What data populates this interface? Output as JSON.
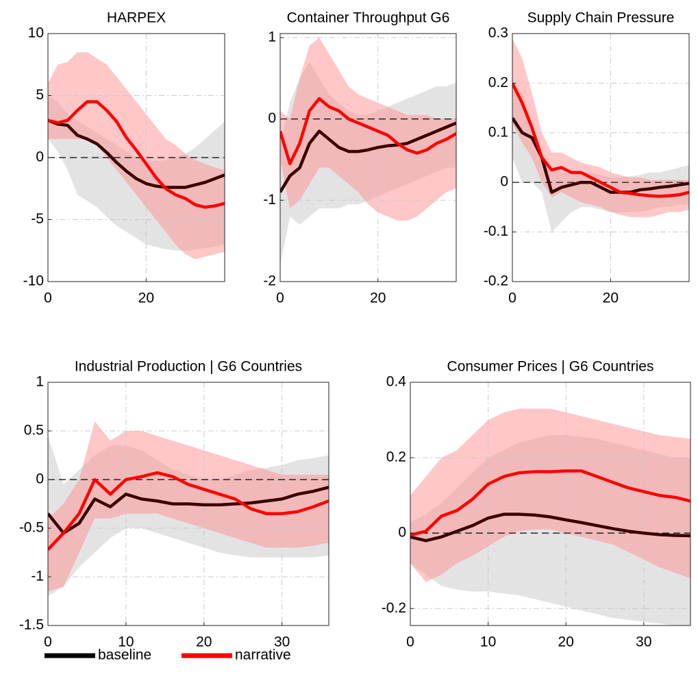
{
  "chart_data": [
    {
      "type": "line",
      "title": "HARPEX",
      "x": [
        0,
        2,
        4,
        6,
        8,
        10,
        12,
        14,
        16,
        18,
        20,
        22,
        24,
        26,
        28,
        30,
        32,
        34,
        36
      ],
      "xlim": [
        0,
        36
      ],
      "xticks": [
        0,
        20
      ],
      "ylim": [
        -10,
        10
      ],
      "yticks": [
        -10,
        -5,
        0,
        5,
        10
      ],
      "grid": true,
      "zero_line": true,
      "series": [
        {
          "name": "baseline",
          "color": "#3a0000",
          "band_color": "#e3e3e3",
          "values": [
            3,
            2.7,
            2.6,
            1.8,
            1.5,
            1.1,
            0.4,
            -0.4,
            -1.1,
            -1.7,
            -2.1,
            -2.3,
            -2.4,
            -2.4,
            -2.4,
            -2.2,
            -2.0,
            -1.7,
            -1.4
          ],
          "band_upper": [
            5,
            4.5,
            3.5,
            3,
            2.5,
            2,
            1.5,
            1,
            0.5,
            0,
            -0.2,
            -0.3,
            -0.2,
            0,
            0.3,
            0.8,
            1.5,
            2.2,
            2.9
          ],
          "band_lower": [
            1.5,
            0.5,
            -1,
            -3,
            -3.5,
            -4,
            -4.8,
            -5.5,
            -6,
            -6.5,
            -7,
            -7.2,
            -7.4,
            -7.5,
            -7.5,
            -7.4,
            -7.3,
            -7.2,
            -7.0
          ]
        },
        {
          "name": "narrative",
          "color": "#ff0000",
          "band_color": "#ff8f8f",
          "values": [
            3,
            2.8,
            3,
            3.8,
            4.5,
            4.5,
            3.8,
            2.9,
            1.6,
            0.6,
            -0.5,
            -1.6,
            -2.5,
            -3,
            -3.3,
            -3.8,
            -4,
            -3.9,
            -3.7
          ],
          "band_upper": [
            6,
            7.5,
            7.7,
            8.5,
            8.5,
            8,
            7.5,
            6.5,
            5.5,
            4.5,
            3.5,
            2.5,
            1.5,
            1,
            0.3,
            -0.2,
            -0.5,
            -0.8,
            -1
          ],
          "band_lower": [
            1.5,
            1.5,
            1.5,
            1.5,
            1.5,
            1,
            0,
            -1,
            -2,
            -3,
            -4,
            -5,
            -6,
            -7,
            -7.8,
            -8.2,
            -8,
            -7.8,
            -7.6
          ]
        }
      ]
    },
    {
      "type": "line",
      "title": "Container Throughput G6",
      "x": [
        0,
        2,
        4,
        6,
        8,
        10,
        12,
        14,
        16,
        18,
        20,
        22,
        24,
        26,
        28,
        30,
        32,
        34,
        36
      ],
      "xlim": [
        0,
        36
      ],
      "xticks": [
        0,
        20
      ],
      "ylim": [
        -2,
        1.05
      ],
      "yticks": [
        -2,
        -1,
        0,
        1
      ],
      "grid": true,
      "zero_line": true,
      "series": [
        {
          "color": "#3a0000",
          "band_color": "#e3e3e3",
          "values": [
            -0.9,
            -0.7,
            -0.6,
            -0.3,
            -0.15,
            -0.25,
            -0.35,
            -0.4,
            -0.4,
            -0.38,
            -0.35,
            -0.33,
            -0.32,
            -0.3,
            -0.25,
            -0.2,
            -0.15,
            -0.1,
            -0.05
          ],
          "band_upper": [
            -0.3,
            0.2,
            0.5,
            0.7,
            0.5,
            0.3,
            0.2,
            0.1,
            0.05,
            0.05,
            0.1,
            0.15,
            0.2,
            0.25,
            0.3,
            0.35,
            0.4,
            0.4,
            0.45
          ],
          "band_lower": [
            -1.8,
            -1.2,
            -1.3,
            -1.2,
            -1.1,
            -1.1,
            -1.1,
            -1.05,
            -1.05,
            -1.0,
            -0.95,
            -0.9,
            -0.85,
            -0.8,
            -0.75,
            -0.7,
            -0.65,
            -0.6,
            -0.6
          ]
        },
        {
          "color": "#ff0000",
          "band_color": "#ff8f8f",
          "values": [
            -0.15,
            -0.55,
            -0.3,
            0.1,
            0.25,
            0.15,
            0.1,
            0,
            -0.05,
            -0.1,
            -0.15,
            -0.2,
            -0.3,
            -0.38,
            -0.42,
            -0.38,
            -0.3,
            -0.25,
            -0.18
          ],
          "band_upper": [
            0.1,
            0.0,
            0.5,
            0.9,
            1.0,
            0.8,
            0.6,
            0.4,
            0.3,
            0.25,
            0.2,
            0.15,
            0.1,
            0.05,
            0.05,
            0.05,
            0.0,
            0.0,
            0.0
          ],
          "band_lower": [
            -0.5,
            -1.1,
            -1.0,
            -0.8,
            -0.6,
            -0.6,
            -0.7,
            -0.8,
            -0.9,
            -1.05,
            -1.15,
            -1.2,
            -1.25,
            -1.25,
            -1.2,
            -1.1,
            -1.0,
            -0.9,
            -0.85
          ]
        }
      ]
    },
    {
      "type": "line",
      "title": "Supply Chain Pressure",
      "x": [
        0,
        2,
        4,
        6,
        8,
        10,
        12,
        14,
        16,
        18,
        20,
        22,
        24,
        26,
        28,
        30,
        32,
        34,
        36
      ],
      "xlim": [
        0,
        36
      ],
      "xticks": [
        0,
        20
      ],
      "ylim": [
        -0.2,
        0.3
      ],
      "yticks": [
        -0.2,
        -0.1,
        0,
        0.1,
        0.2,
        0.3
      ],
      "grid": true,
      "zero_line": true,
      "series": [
        {
          "color": "#3a0000",
          "band_color": "#e3e3e3",
          "values": [
            0.13,
            0.1,
            0.09,
            0.05,
            -0.02,
            -0.01,
            -0.005,
            0,
            0,
            -0.01,
            -0.02,
            -0.02,
            -0.02,
            -0.015,
            -0.013,
            -0.01,
            -0.008,
            -0.005,
            -0.002
          ],
          "band_upper": [
            0.2,
            0.18,
            0.12,
            0.06,
            0.03,
            0.02,
            0.02,
            0.02,
            0.02,
            0.015,
            0.01,
            0.01,
            0.012,
            0.015,
            0.02,
            0.02,
            0.025,
            0.03,
            0.035
          ],
          "band_lower": [
            0.05,
            0.0,
            0.0,
            -0.02,
            -0.1,
            -0.08,
            -0.06,
            -0.05,
            -0.05,
            -0.055,
            -0.06,
            -0.06,
            -0.06,
            -0.06,
            -0.055,
            -0.05,
            -0.05,
            -0.045,
            -0.045
          ]
        },
        {
          "color": "#ff0000",
          "band_color": "#ff8f8f",
          "values": [
            0.2,
            0.16,
            0.11,
            0.05,
            0.025,
            0.03,
            0.02,
            0.02,
            0.01,
            0,
            -0.01,
            -0.02,
            -0.022,
            -0.025,
            -0.027,
            -0.028,
            -0.027,
            -0.025,
            -0.02
          ],
          "band_upper": [
            0.29,
            0.25,
            0.18,
            0.1,
            0.06,
            0.06,
            0.05,
            0.04,
            0.035,
            0.03,
            0.02,
            0.015,
            0.01,
            0.01,
            0.005,
            0.005,
            0.005,
            0.005,
            0.005
          ],
          "band_lower": [
            0.12,
            0.08,
            0.05,
            0.0,
            -0.03,
            -0.02,
            -0.03,
            -0.04,
            -0.045,
            -0.05,
            -0.06,
            -0.065,
            -0.07,
            -0.07,
            -0.07,
            -0.065,
            -0.06,
            -0.06,
            -0.055
          ]
        }
      ]
    },
    {
      "type": "line",
      "title": "Industrial Production | G6 Countries",
      "x": [
        0,
        2,
        4,
        6,
        8,
        10,
        12,
        14,
        16,
        18,
        20,
        22,
        24,
        26,
        28,
        30,
        32,
        34,
        36
      ],
      "xlim": [
        0,
        36
      ],
      "xticks": [
        0,
        10,
        20,
        30
      ],
      "ylim": [
        -1.5,
        1
      ],
      "yticks": [
        -1.5,
        -1,
        -0.5,
        0,
        0.5,
        1
      ],
      "grid": true,
      "zero_line": true,
      "series": [
        {
          "color": "#3a0000",
          "band_color": "#e3e3e3",
          "values": [
            -0.35,
            -0.55,
            -0.45,
            -0.2,
            -0.28,
            -0.15,
            -0.2,
            -0.22,
            -0.25,
            -0.25,
            -0.26,
            -0.26,
            -0.25,
            -0.24,
            -0.22,
            -0.2,
            -0.15,
            -0.12,
            -0.08
          ],
          "band_upper": [
            0.45,
            -0.05,
            0.1,
            0.25,
            0.35,
            0.35,
            0.3,
            0.2,
            0.1,
            0.05,
            0,
            0,
            0.05,
            0.1,
            0.12,
            0.15,
            0.2,
            0.22,
            0.25
          ],
          "band_lower": [
            -1.2,
            -1.1,
            -0.9,
            -0.75,
            -0.6,
            -0.5,
            -0.5,
            -0.55,
            -0.6,
            -0.65,
            -0.7,
            -0.75,
            -0.78,
            -0.8,
            -0.8,
            -0.8,
            -0.8,
            -0.8,
            -0.78
          ]
        },
        {
          "color": "#ff0000",
          "band_color": "#ff8f8f",
          "values": [
            -0.72,
            -0.55,
            -0.35,
            0,
            -0.15,
            0,
            0.03,
            0.07,
            0.03,
            -0.05,
            -0.1,
            -0.15,
            -0.2,
            -0.3,
            -0.35,
            -0.35,
            -0.33,
            -0.28,
            -0.22
          ],
          "band_upper": [
            -0.4,
            -0.25,
            0.0,
            0.6,
            0.4,
            0.5,
            0.5,
            0.45,
            0.4,
            0.35,
            0.3,
            0.25,
            0.2,
            0.15,
            0.1,
            0.05,
            0.05,
            0.05,
            0.05
          ],
          "band_lower": [
            -1.15,
            -1.1,
            -0.75,
            -0.4,
            -0.4,
            -0.35,
            -0.35,
            -0.35,
            -0.4,
            -0.45,
            -0.5,
            -0.55,
            -0.6,
            -0.65,
            -0.7,
            -0.7,
            -0.7,
            -0.68,
            -0.65
          ]
        }
      ]
    },
    {
      "type": "line",
      "title": "Consumer Prices | G6 Countries",
      "x": [
        0,
        2,
        4,
        6,
        8,
        10,
        12,
        14,
        16,
        18,
        20,
        22,
        24,
        26,
        28,
        30,
        32,
        34,
        36
      ],
      "xlim": [
        0,
        36
      ],
      "xticks": [
        0,
        10,
        20,
        30
      ],
      "ylim": [
        -0.245,
        0.4
      ],
      "yticks": [
        -0.2,
        0,
        0.2,
        0.4
      ],
      "grid": true,
      "zero_line": true,
      "series": [
        {
          "color": "#3a0000",
          "band_color": "#e3e3e3",
          "values": [
            -0.01,
            -0.02,
            -0.01,
            0.005,
            0.02,
            0.04,
            0.05,
            0.05,
            0.048,
            0.043,
            0.035,
            0.028,
            0.02,
            0.012,
            0.005,
            0,
            -0.004,
            -0.006,
            -0.007
          ],
          "band_upper": [
            0.03,
            0.05,
            0.08,
            0.12,
            0.16,
            0.2,
            0.22,
            0.24,
            0.25,
            0.26,
            0.26,
            0.255,
            0.25,
            0.24,
            0.23,
            0.22,
            0.21,
            0.2,
            0.2
          ],
          "band_lower": [
            -0.08,
            -0.11,
            -0.14,
            -0.15,
            -0.155,
            -0.155,
            -0.16,
            -0.165,
            -0.175,
            -0.185,
            -0.195,
            -0.205,
            -0.215,
            -0.225,
            -0.23,
            -0.235,
            -0.24,
            -0.245,
            -0.245
          ]
        },
        {
          "color": "#ff0000",
          "band_color": "#ff8f8f",
          "values": [
            -0.005,
            0.005,
            0.045,
            0.06,
            0.09,
            0.13,
            0.15,
            0.16,
            0.163,
            0.163,
            0.165,
            0.165,
            0.15,
            0.135,
            0.12,
            0.11,
            0.1,
            0.095,
            0.085
          ],
          "band_upper": [
            0.1,
            0.15,
            0.2,
            0.22,
            0.26,
            0.3,
            0.32,
            0.33,
            0.33,
            0.33,
            0.32,
            0.31,
            0.3,
            0.29,
            0.28,
            0.27,
            0.26,
            0.255,
            0.25
          ],
          "band_lower": [
            -0.08,
            -0.13,
            -0.11,
            -0.08,
            -0.06,
            -0.035,
            -0.01,
            0.005,
            0.01,
            0.01,
            0.0,
            -0.01,
            -0.02,
            -0.03,
            -0.05,
            -0.07,
            -0.09,
            -0.105,
            -0.12
          ]
        }
      ]
    }
  ]
}
